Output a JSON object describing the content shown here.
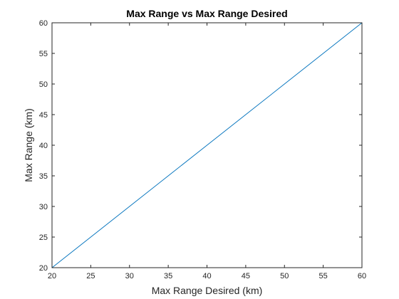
{
  "chart_data": {
    "type": "line",
    "title": "Max Range vs Max Range Desired",
    "xlabel": "Max Range Desired (km)",
    "ylabel": "Max Range (km)",
    "xlim": [
      20,
      60
    ],
    "ylim": [
      20,
      60
    ],
    "xticks": [
      20,
      25,
      30,
      35,
      40,
      45,
      50,
      55,
      60
    ],
    "yticks": [
      20,
      25,
      30,
      35,
      40,
      45,
      50,
      55,
      60
    ],
    "grid": false,
    "series": [
      {
        "x": [
          20,
          25,
          30,
          35,
          40,
          45,
          50,
          55,
          60
        ],
        "y": [
          20,
          25,
          30,
          35,
          40,
          45,
          50,
          55,
          60
        ],
        "color": "#0072BD"
      }
    ]
  }
}
